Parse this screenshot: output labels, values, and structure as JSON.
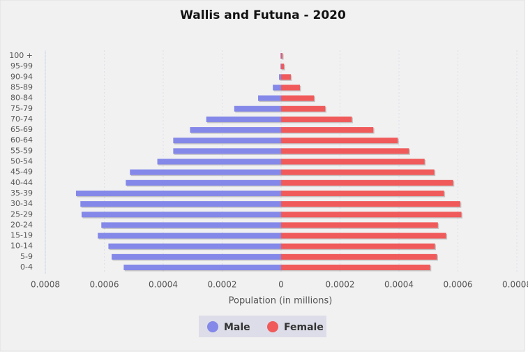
{
  "chart_data": {
    "type": "pyramid",
    "title": "Wallis and Futuna - 2020",
    "x_label": "Population (in millions)",
    "categories": [
      "100 +",
      "95-99",
      "90-94",
      "85-89",
      "80-84",
      "75-79",
      "70-74",
      "65-69",
      "60-64",
      "55-59",
      "50-54",
      "45-49",
      "40-44",
      "35-39",
      "30-34",
      "25-29",
      "20-24",
      "15-19",
      "10-14",
      "5-9",
      "0-4"
    ],
    "series": [
      {
        "name": "Male",
        "color": "#8488e8",
        "values": [
          -2e-06,
          -2e-06,
          -7e-06,
          -2.8e-05,
          -7.8e-05,
          -0.000159,
          -0.000254,
          -0.000309,
          -0.000366,
          -0.000366,
          -0.00042,
          -0.000513,
          -0.000527,
          -0.000696,
          -0.000681,
          -0.000677,
          -0.00061,
          -0.000622,
          -0.000586,
          -0.000575,
          -0.000534
        ]
      },
      {
        "name": "Female",
        "color": "#f05a5a",
        "values": [
          5e-06,
          1e-05,
          3.3e-05,
          6.4e-05,
          0.000112,
          0.00015,
          0.00024,
          0.000313,
          0.000396,
          0.000434,
          0.000487,
          0.00052,
          0.000584,
          0.000553,
          0.000608,
          0.000612,
          0.000532,
          0.00056,
          0.000522,
          0.000529,
          0.000506
        ]
      }
    ],
    "xlim": [
      -0.0008,
      0.0008
    ],
    "xticks": [
      {
        "value": -0.0008,
        "label": "0.0008"
      },
      {
        "value": -0.0006,
        "label": "0.0006"
      },
      {
        "value": -0.0004,
        "label": "0.0004"
      },
      {
        "value": -0.0002,
        "label": "0.0002"
      },
      0,
      0.0002,
      0.0004,
      0.0006,
      0.0008
    ],
    "grid": true,
    "legend": "bottom"
  }
}
